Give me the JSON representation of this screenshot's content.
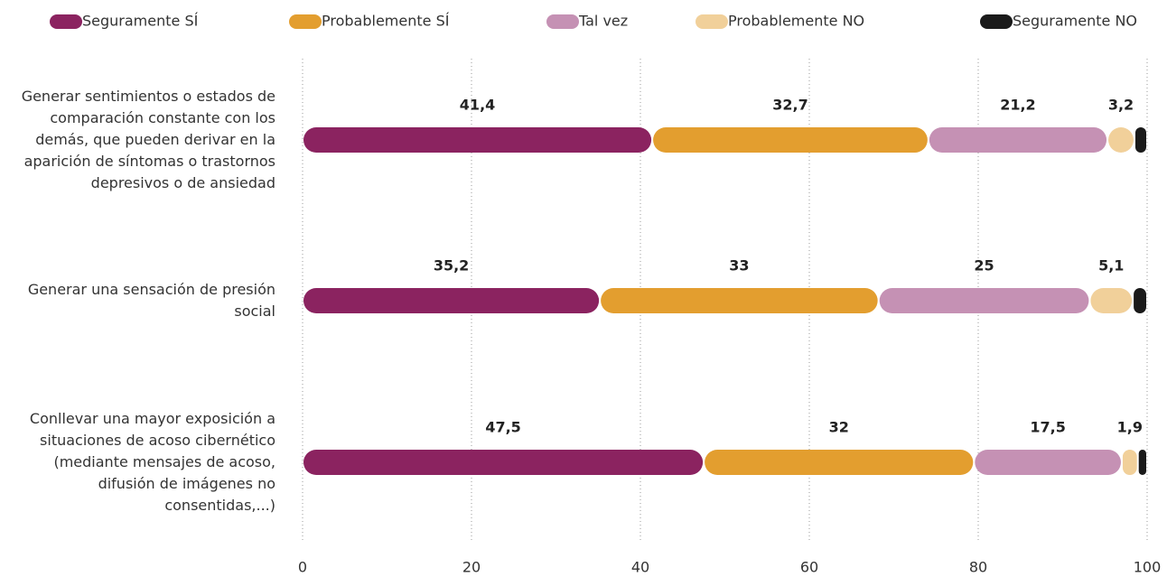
{
  "chart_data": {
    "type": "stacked_barh",
    "categories": [
      "Generar sentimientos o estados de comparación  constante con los demás, que pueden derivar en la  aparición de síntomas o trastornos depresivos o de ansiedad",
      "Generar una sensación de presión social",
      "Conllevar una mayor exposición a situaciones de acoso cibernético (mediante mensajes de acoso, difusión de imágenes no consentidas,...)"
    ],
    "series": [
      {
        "name": "Seguramente SÍ",
        "color": "#8b2360",
        "values": [
          41.4,
          35.2,
          47.5
        ],
        "value_labels": [
          "41,4",
          "35,2",
          "47,5"
        ]
      },
      {
        "name": "Probablemente SÍ",
        "color": "#e39e2f",
        "values": [
          32.7,
          33,
          32
        ],
        "value_labels": [
          "32,7",
          "33",
          "32"
        ]
      },
      {
        "name": "Tal vez",
        "color": "#c591b4",
        "values": [
          21.2,
          25,
          17.5
        ],
        "value_labels": [
          "21,2",
          "25",
          "17,5"
        ]
      },
      {
        "name": "Probablemente NO",
        "color": "#f1d09a",
        "values": [
          3.2,
          5.1,
          1.9
        ],
        "value_labels": [
          "3,2",
          "5,1",
          "1,9"
        ]
      },
      {
        "name": "Seguramente NO",
        "color": "#1a1a1a",
        "values": [
          1.5,
          1.7,
          1.1
        ]
      }
    ],
    "xlim": [
      0,
      100
    ],
    "xticks": [
      0,
      20,
      40,
      60,
      80,
      100
    ],
    "grid": true,
    "legend": "top"
  }
}
